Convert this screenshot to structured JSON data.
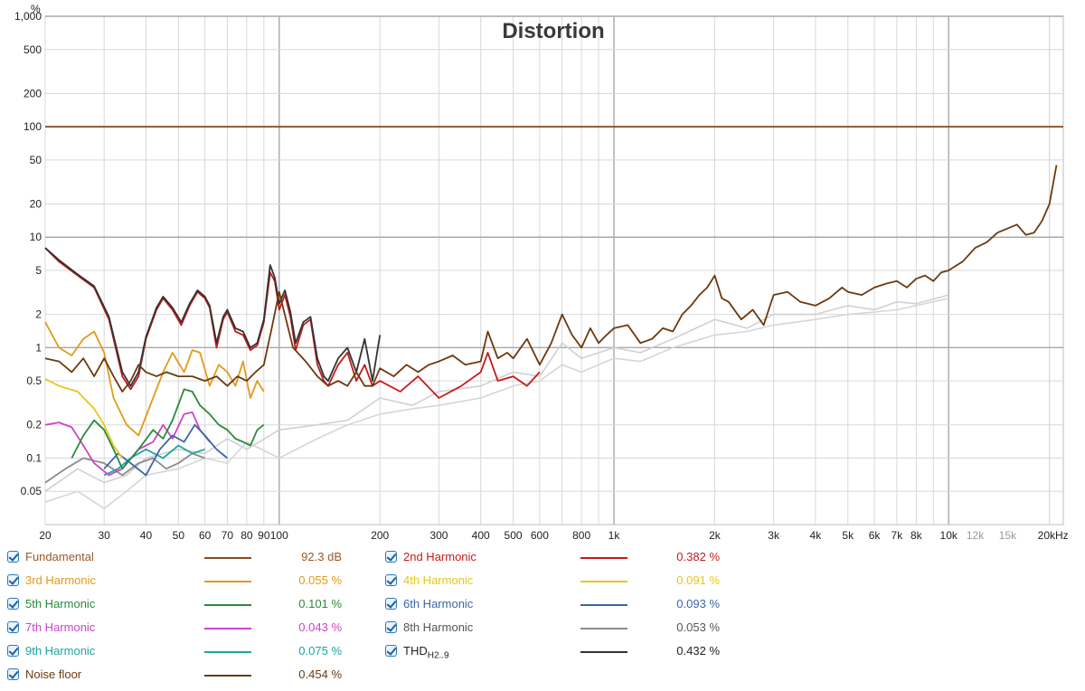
{
  "chart_data": {
    "type": "line",
    "title": "Distortion",
    "y_unit": "%",
    "x_unit": "Hz",
    "x_scale": "log",
    "y_scale": "log",
    "xlim": [
      20,
      22000
    ],
    "ylim": [
      0.025,
      1000
    ],
    "grid": true,
    "legend_placement": "bottom",
    "y_ticks": [
      {
        "v": 1000,
        "label": "1,000"
      },
      {
        "v": 500,
        "label": "500"
      },
      {
        "v": 200,
        "label": "200"
      },
      {
        "v": 100,
        "label": "100"
      },
      {
        "v": 50,
        "label": "50"
      },
      {
        "v": 20,
        "label": "20"
      },
      {
        "v": 10,
        "label": "10"
      },
      {
        "v": 5,
        "label": "5"
      },
      {
        "v": 2,
        "label": "2"
      },
      {
        "v": 1,
        "label": "1"
      },
      {
        "v": 0.5,
        "label": "0.5"
      },
      {
        "v": 0.2,
        "label": "0.2"
      },
      {
        "v": 0.1,
        "label": "0.1"
      },
      {
        "v": 0.05,
        "label": "0.05"
      }
    ],
    "x_ticks": [
      {
        "v": 20,
        "label": "20"
      },
      {
        "v": 30,
        "label": "30"
      },
      {
        "v": 40,
        "label": "40"
      },
      {
        "v": 50,
        "label": "50"
      },
      {
        "v": 60,
        "label": "60"
      },
      {
        "v": 70,
        "label": "70"
      },
      {
        "v": 80,
        "label": "80"
      },
      {
        "v": 90,
        "label": "90"
      },
      {
        "v": 100,
        "label": "100"
      },
      {
        "v": 200,
        "label": "200"
      },
      {
        "v": 300,
        "label": "300"
      },
      {
        "v": 400,
        "label": "400"
      },
      {
        "v": 500,
        "label": "500"
      },
      {
        "v": 600,
        "label": "600"
      },
      {
        "v": 800,
        "label": "800"
      },
      {
        "v": 1000,
        "label": "1k"
      },
      {
        "v": 2000,
        "label": "2k"
      },
      {
        "v": 3000,
        "label": "3k"
      },
      {
        "v": 4000,
        "label": "4k"
      },
      {
        "v": 5000,
        "label": "5k"
      },
      {
        "v": 6000,
        "label": "6k"
      },
      {
        "v": 7000,
        "label": "7k"
      },
      {
        "v": 8000,
        "label": "8k"
      },
      {
        "v": 10000,
        "label": "10k"
      },
      {
        "v": 12000,
        "label": "12k",
        "grey": true
      },
      {
        "v": 15000,
        "label": "15k",
        "grey": true
      },
      {
        "v": 20000,
        "label": "20kHz"
      }
    ],
    "series": [
      {
        "name": "Fundamental",
        "color": "#8a4a1e",
        "value": "92.3 dB",
        "x": [
          20,
          22000
        ],
        "y": [
          100,
          100
        ]
      },
      {
        "name": "2nd Harmonic",
        "color": "#c41b1b",
        "value": "0.382 %",
        "x": [
          20,
          22,
          25,
          28,
          31,
          34,
          36,
          38,
          40,
          43,
          45,
          48,
          51,
          54,
          57,
          60,
          62,
          65,
          68,
          70,
          74,
          78,
          82,
          86,
          90,
          94,
          97,
          100,
          104,
          108,
          112,
          118,
          124,
          130,
          136,
          140,
          150,
          160,
          170,
          180,
          190,
          200,
          230,
          260,
          300,
          350,
          400,
          420,
          450,
          500,
          550,
          600
        ],
        "y": [
          8,
          6,
          4.5,
          3.5,
          1.8,
          0.55,
          0.42,
          0.55,
          1.2,
          2.2,
          2.8,
          2.2,
          1.6,
          2.4,
          3.2,
          2.8,
          2.3,
          1.0,
          1.8,
          2.1,
          1.4,
          1.3,
          0.95,
          1.05,
          1.7,
          4.8,
          4.0,
          2.2,
          3.0,
          1.9,
          0.95,
          1.6,
          1.8,
          0.7,
          0.5,
          0.45,
          0.7,
          0.9,
          0.5,
          0.7,
          0.45,
          0.5,
          0.4,
          0.55,
          0.35,
          0.45,
          0.6,
          0.9,
          0.5,
          0.55,
          0.45,
          0.6
        ]
      },
      {
        "name": "3rd Harmonic",
        "color": "#e39a1a",
        "value": "0.055 %",
        "x": [
          20,
          22,
          24,
          26,
          28,
          30,
          32,
          35,
          38,
          42,
          45,
          48,
          52,
          55,
          58,
          62,
          66,
          70,
          74,
          78,
          82,
          86,
          90
        ],
        "y": [
          1.7,
          1.0,
          0.85,
          1.2,
          1.4,
          0.9,
          0.35,
          0.2,
          0.16,
          0.35,
          0.6,
          0.9,
          0.6,
          0.95,
          0.9,
          0.45,
          0.7,
          0.6,
          0.45,
          0.75,
          0.35,
          0.5,
          0.4
        ]
      },
      {
        "name": "4th Harmonic",
        "color": "#e8c61c",
        "value": "0.091 %",
        "x": [
          20,
          22,
          25,
          28,
          30,
          32,
          34
        ],
        "y": [
          0.52,
          0.45,
          0.4,
          0.28,
          0.2,
          0.13,
          0.1
        ]
      },
      {
        "name": "5th Harmonic",
        "color": "#2a8a3a",
        "value": "0.101 %",
        "x": [
          24,
          26,
          28,
          30,
          32,
          34,
          38,
          42,
          45,
          48,
          52,
          55,
          58,
          62,
          66,
          70,
          74,
          78,
          82,
          86,
          90
        ],
        "y": [
          0.1,
          0.16,
          0.22,
          0.18,
          0.12,
          0.08,
          0.12,
          0.18,
          0.15,
          0.22,
          0.42,
          0.4,
          0.3,
          0.25,
          0.2,
          0.18,
          0.15,
          0.14,
          0.13,
          0.18,
          0.2
        ]
      },
      {
        "name": "6th Harmonic",
        "color": "#3a66a8",
        "value": "0.093 %",
        "x": [
          30,
          33,
          36,
          40,
          44,
          48,
          52,
          56,
          60,
          65,
          70
        ],
        "y": [
          0.08,
          0.11,
          0.09,
          0.07,
          0.12,
          0.16,
          0.14,
          0.2,
          0.16,
          0.12,
          0.1
        ]
      },
      {
        "name": "7th Harmonic",
        "color": "#cc44cc",
        "value": "0.043 %",
        "x": [
          20,
          22,
          24,
          26,
          28,
          31,
          34,
          38,
          42,
          45,
          48,
          52,
          55,
          58,
          62
        ],
        "y": [
          0.2,
          0.21,
          0.19,
          0.13,
          0.09,
          0.07,
          0.08,
          0.12,
          0.14,
          0.2,
          0.15,
          0.25,
          0.26,
          0.18,
          0.14
        ]
      },
      {
        "name": "8th Harmonic",
        "color": "#8c8c8c",
        "value": "0.053 %",
        "x": [
          20,
          23,
          26,
          30,
          34,
          38,
          42,
          46,
          50,
          55,
          60
        ],
        "y": [
          0.06,
          0.08,
          0.1,
          0.09,
          0.07,
          0.09,
          0.1,
          0.08,
          0.09,
          0.11,
          0.1
        ]
      },
      {
        "name": "9th Harmonic",
        "color": "#1fa3a3",
        "value": "0.075 %",
        "x": [
          30,
          33,
          36,
          40,
          45,
          50,
          55,
          60
        ],
        "y": [
          0.07,
          0.08,
          0.1,
          0.12,
          0.1,
          0.13,
          0.11,
          0.12
        ]
      },
      {
        "name": "THD",
        "name_sub": "H2..9",
        "color": "#333333",
        "value": "0.432 %",
        "x": [
          20,
          22,
          25,
          28,
          31,
          34,
          36,
          38,
          40,
          43,
          45,
          48,
          51,
          54,
          57,
          60,
          62,
          65,
          68,
          70,
          74,
          78,
          82,
          86,
          90,
          94,
          97,
          100,
          104,
          108,
          112,
          118,
          124,
          130,
          136,
          140,
          150,
          160,
          170,
          180,
          190,
          200
        ],
        "y": [
          8,
          6.2,
          4.6,
          3.6,
          1.9,
          0.6,
          0.45,
          0.6,
          1.25,
          2.3,
          2.9,
          2.3,
          1.7,
          2.5,
          3.3,
          2.9,
          2.4,
          1.1,
          1.9,
          2.2,
          1.5,
          1.4,
          1.0,
          1.1,
          1.8,
          5.6,
          4.3,
          2.5,
          3.3,
          2.1,
          1.1,
          1.7,
          1.9,
          0.8,
          0.55,
          0.5,
          0.8,
          1.0,
          0.6,
          1.2,
          0.5,
          1.3
        ]
      },
      {
        "name": "Noise floor",
        "color": "#6b3a10",
        "value": "0.454 %",
        "x": [
          20,
          22,
          24,
          26,
          28,
          30,
          32,
          34,
          36,
          38,
          40,
          43,
          46,
          50,
          55,
          60,
          65,
          70,
          75,
          80,
          85,
          90,
          95,
          100,
          110,
          120,
          130,
          140,
          150,
          160,
          170,
          180,
          190,
          200,
          220,
          240,
          260,
          280,
          300,
          330,
          360,
          400,
          420,
          450,
          480,
          500,
          550,
          600,
          650,
          700,
          750,
          800,
          850,
          900,
          950,
          1000,
          1100,
          1200,
          1300,
          1400,
          1500,
          1600,
          1700,
          1800,
          1900,
          2000,
          2100,
          2200,
          2400,
          2600,
          2800,
          3000,
          3300,
          3600,
          4000,
          4400,
          4800,
          5000,
          5500,
          6000,
          6500,
          7000,
          7500,
          8000,
          8500,
          9000,
          9500,
          10000,
          10500,
          11000,
          12000,
          13000,
          14000,
          15000,
          16000,
          17000,
          18000,
          19000,
          20000,
          21000
        ],
        "y": [
          0.8,
          0.75,
          0.6,
          0.8,
          0.55,
          0.8,
          0.55,
          0.4,
          0.5,
          0.7,
          0.6,
          0.55,
          0.6,
          0.55,
          0.55,
          0.5,
          0.55,
          0.45,
          0.55,
          0.5,
          0.6,
          0.7,
          1.5,
          3.2,
          1.0,
          0.75,
          0.55,
          0.45,
          0.5,
          0.45,
          0.6,
          0.45,
          0.45,
          0.65,
          0.55,
          0.7,
          0.6,
          0.7,
          0.75,
          0.85,
          0.7,
          0.75,
          1.4,
          0.8,
          0.9,
          0.8,
          1.2,
          0.7,
          1.1,
          2.0,
          1.3,
          1.0,
          1.5,
          1.1,
          1.3,
          1.5,
          1.6,
          1.1,
          1.2,
          1.5,
          1.4,
          2.0,
          2.4,
          3.0,
          3.5,
          4.5,
          2.8,
          2.6,
          1.8,
          2.2,
          1.6,
          3.0,
          3.2,
          2.6,
          2.4,
          2.8,
          3.5,
          3.2,
          3.0,
          3.5,
          3.8,
          4.0,
          3.5,
          4.2,
          4.5,
          4.0,
          4.8,
          5.0,
          5.5,
          6.0,
          8.0,
          9.0,
          11.0,
          12.0,
          13.0,
          10.5,
          11.0,
          14.0,
          20.0,
          45.0
        ]
      },
      {
        "name": "grey-1",
        "color": "#d0d0d0",
        "x": [
          20,
          25,
          30,
          35,
          40,
          50,
          60,
          70,
          80,
          100,
          130,
          160,
          200,
          250,
          300,
          400,
          500,
          600,
          700,
          800,
          1000,
          1200,
          1500,
          2000,
          2500,
          3000,
          4000,
          5000,
          6000,
          7000,
          8000,
          10000
        ],
        "y": [
          0.05,
          0.08,
          0.06,
          0.07,
          0.1,
          0.12,
          0.11,
          0.15,
          0.12,
          0.18,
          0.2,
          0.22,
          0.35,
          0.3,
          0.4,
          0.45,
          0.6,
          0.55,
          1.1,
          0.8,
          1.0,
          0.9,
          1.2,
          1.8,
          1.5,
          2.0,
          2.0,
          2.4,
          2.2,
          2.6,
          2.5,
          3.0
        ]
      },
      {
        "name": "grey-2",
        "color": "#d6d6d6",
        "x": [
          20,
          25,
          30,
          35,
          40,
          50,
          60,
          70,
          80,
          100,
          130,
          160,
          200,
          250,
          300,
          400,
          500,
          600,
          700,
          800,
          1000,
          1200,
          1500,
          2000,
          2500,
          3000,
          4000,
          5000,
          6000,
          7000,
          8000,
          10000
        ],
        "y": [
          0.04,
          0.05,
          0.035,
          0.05,
          0.07,
          0.08,
          0.1,
          0.09,
          0.14,
          0.1,
          0.15,
          0.2,
          0.25,
          0.28,
          0.3,
          0.35,
          0.45,
          0.5,
          0.7,
          0.6,
          0.8,
          0.75,
          1.0,
          1.3,
          1.4,
          1.6,
          1.8,
          2.0,
          2.1,
          2.2,
          2.4,
          2.8
        ]
      }
    ]
  },
  "legend": {
    "left": [
      {
        "name": "Fundamental",
        "sub": "",
        "color": "#8a4a1e",
        "text_color": "#9a5a2a",
        "value": "92.3 dB"
      },
      {
        "name": "3rd Harmonic",
        "sub": "",
        "color": "#e39a1a",
        "text_color": "#e39a1a",
        "value": "0.055 %"
      },
      {
        "name": "5th Harmonic",
        "sub": "",
        "color": "#2a8a3a",
        "text_color": "#2a8a3a",
        "value": "0.101 %"
      },
      {
        "name": "7th Harmonic",
        "sub": "",
        "color": "#cc44cc",
        "text_color": "#cc44cc",
        "value": "0.043 %"
      },
      {
        "name": "9th Harmonic",
        "sub": "",
        "color": "#1fa3a3",
        "text_color": "#1fa3a3",
        "value": "0.075 %"
      },
      {
        "name": "Noise floor",
        "sub": "",
        "color": "#6b3a10",
        "text_color": "#6b3a10",
        "value": "0.454 %"
      }
    ],
    "right": [
      {
        "name": "2nd Harmonic",
        "sub": "",
        "color": "#c41b1b",
        "text_color": "#c41b1b",
        "value": "0.382 %"
      },
      {
        "name": "4th Harmonic",
        "sub": "",
        "color": "#e8c61c",
        "text_color": "#e8c61c",
        "value": "0.091 %"
      },
      {
        "name": "6th Harmonic",
        "sub": "",
        "color": "#3a66a8",
        "text_color": "#3a66a8",
        "value": "0.093 %"
      },
      {
        "name": "8th Harmonic",
        "sub": "",
        "color": "#8c8c8c",
        "text_color": "#555555",
        "value": "0.053 %"
      },
      {
        "name": "THD",
        "sub": "H2..9",
        "color": "#333333",
        "text_color": "#222222",
        "value": "0.432 %"
      }
    ]
  }
}
